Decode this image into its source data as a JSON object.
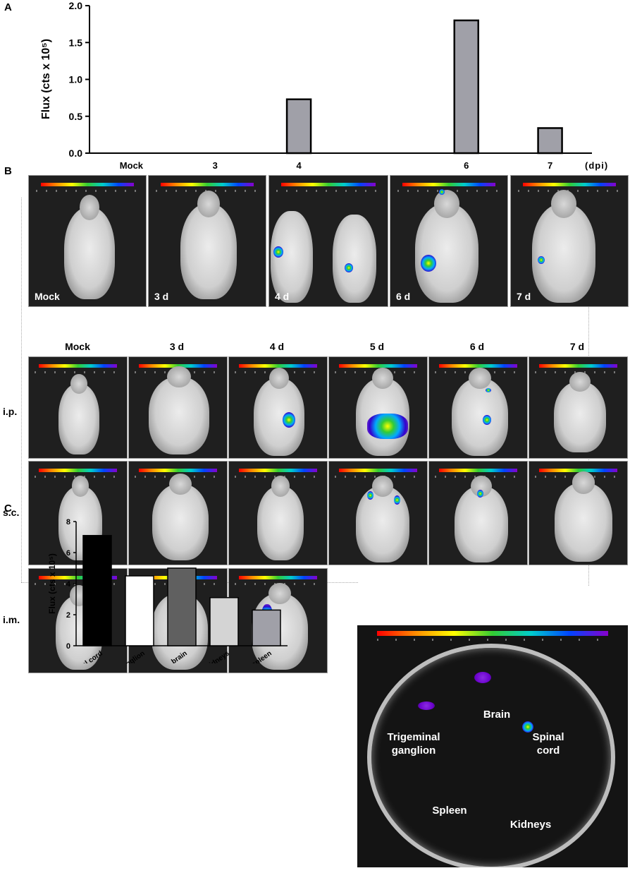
{
  "panels": {
    "a": "A",
    "b": "B",
    "c": "C"
  },
  "chart_data": [
    {
      "type": "bar",
      "categories": [
        "Mock",
        "3",
        "4",
        "",
        "6",
        "7"
      ],
      "values": [
        0,
        0,
        0.73,
        0,
        1.8,
        0.34
      ],
      "ylabel": "Flux (cts x 10⁵)",
      "x_unit": "(dpi)",
      "ylim": [
        0,
        2.0
      ],
      "yticks": [
        "0.0",
        "0.5",
        "1.0",
        "1.5",
        "2.0"
      ],
      "bar_color": "#a0a0a8"
    },
    {
      "type": "bar",
      "categories": [
        "spinal cord",
        "trigeminal ganglion",
        "brain",
        "kidneys",
        "spleen"
      ],
      "values": [
        7.1,
        4.5,
        5.0,
        3.1,
        2.3
      ],
      "ylabel": "Flux (cts x 10⁵)",
      "ylim": [
        0,
        8
      ],
      "yticks": [
        "0",
        "2",
        "4",
        "6",
        "8"
      ],
      "bar_colors": [
        "#000000",
        "#ffffff",
        "#606060",
        "#d4d4d4",
        "#a0a0a8"
      ]
    }
  ],
  "top_row_labels": [
    "Mock",
    "3 d",
    "4 d",
    "6 d",
    "7 d"
  ],
  "grid": {
    "columns": [
      "Mock",
      "3 d",
      "4 d",
      "5 d",
      "6 d",
      "7 d"
    ],
    "rows": [
      "i.p.",
      "s.c.",
      "i.m."
    ]
  },
  "organs": {
    "brain": "Brain",
    "trigeminal_1": "Trigeminal",
    "trigeminal_2": "ganglion",
    "spinal_1": "Spinal",
    "spinal_2": "cord",
    "spleen": "Spleen",
    "kidneys": "Kidneys"
  }
}
